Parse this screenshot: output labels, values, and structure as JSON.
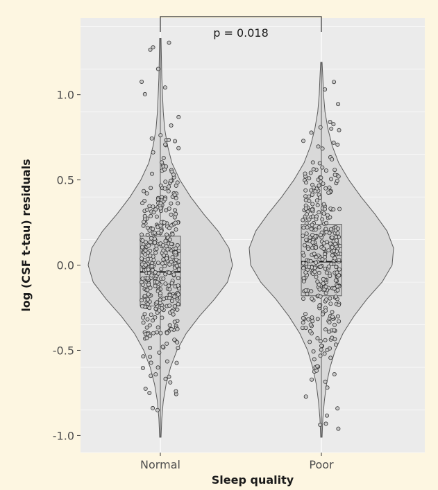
{
  "chart_data": {
    "type": "violin",
    "xlabel": "Sleep quality",
    "ylabel": "log (CSF t-tau) residuals",
    "categories": [
      "Normal",
      "Poor"
    ],
    "ylim": [
      -1.1,
      1.45
    ],
    "yticks": [
      -1.0,
      -0.5,
      0.0,
      0.5,
      1.0
    ],
    "ytick_labels": [
      "-1.0",
      "-0.5",
      "0.0",
      "0.5",
      "1.0"
    ],
    "grid": true,
    "annotation": {
      "text": "p = 0.018",
      "between": [
        "Normal",
        "Poor"
      ]
    },
    "groups": [
      {
        "name": "Normal",
        "min": -1.01,
        "q1": -0.24,
        "median": -0.04,
        "q3": 0.17,
        "max": 1.33,
        "density": [
          [
            -1.01,
            0.01
          ],
          [
            -0.9,
            0.02
          ],
          [
            -0.8,
            0.04
          ],
          [
            -0.7,
            0.08
          ],
          [
            -0.6,
            0.14
          ],
          [
            -0.5,
            0.23
          ],
          [
            -0.4,
            0.36
          ],
          [
            -0.3,
            0.54
          ],
          [
            -0.2,
            0.75
          ],
          [
            -0.1,
            0.93
          ],
          [
            0.0,
            1.0
          ],
          [
            0.1,
            0.95
          ],
          [
            0.2,
            0.8
          ],
          [
            0.3,
            0.6
          ],
          [
            0.4,
            0.42
          ],
          [
            0.5,
            0.27
          ],
          [
            0.6,
            0.16
          ],
          [
            0.7,
            0.1
          ],
          [
            0.8,
            0.06
          ],
          [
            0.9,
            0.04
          ],
          [
            1.0,
            0.03
          ],
          [
            1.1,
            0.02
          ],
          [
            1.2,
            0.015
          ],
          [
            1.33,
            0.01
          ]
        ],
        "n_points": 420
      },
      {
        "name": "Poor",
        "min": -1.01,
        "q1": -0.18,
        "median": 0.02,
        "q3": 0.24,
        "max": 1.19,
        "density": [
          [
            -1.01,
            0.01
          ],
          [
            -0.9,
            0.02
          ],
          [
            -0.8,
            0.04
          ],
          [
            -0.7,
            0.07
          ],
          [
            -0.6,
            0.12
          ],
          [
            -0.5,
            0.19
          ],
          [
            -0.4,
            0.3
          ],
          [
            -0.3,
            0.45
          ],
          [
            -0.2,
            0.63
          ],
          [
            -0.1,
            0.84
          ],
          [
            0.0,
            0.98
          ],
          [
            0.1,
            1.0
          ],
          [
            0.2,
            0.91
          ],
          [
            0.3,
            0.74
          ],
          [
            0.4,
            0.55
          ],
          [
            0.5,
            0.38
          ],
          [
            0.6,
            0.24
          ],
          [
            0.7,
            0.15
          ],
          [
            0.8,
            0.09
          ],
          [
            0.9,
            0.05
          ],
          [
            1.0,
            0.03
          ],
          [
            1.1,
            0.02
          ],
          [
            1.19,
            0.01
          ]
        ],
        "n_points": 380
      }
    ]
  },
  "colors": {
    "panel": "#ebebeb",
    "grid": "#ffffff",
    "violin_fill": "#d9d9d9",
    "violin_stroke": "#5a5a5a",
    "box_fill": "#cccccc",
    "point_fill": "#c8c8c8",
    "point_stroke": "#333333",
    "background": "#fdf6e1"
  }
}
